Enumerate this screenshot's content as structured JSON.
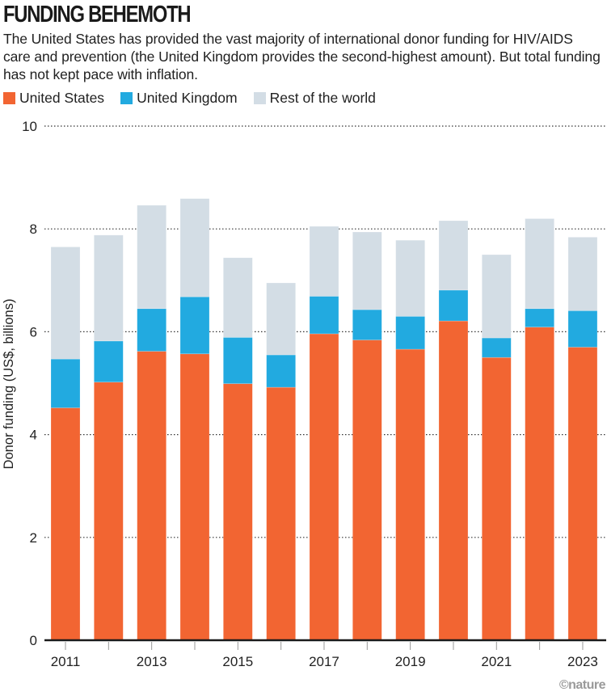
{
  "header": {
    "title": "FUNDING BEHEMOTH",
    "subtitle": "The United States has provided the vast majority of international donor funding for HIV/AIDS care and prevention (the United Kingdom provides the second-highest amount). But total funding has not kept pace with inflation."
  },
  "legend": [
    {
      "label": "United States",
      "color": "#F26532"
    },
    {
      "label": "United Kingdom",
      "color": "#22AAE0"
    },
    {
      "label": "Rest of the world",
      "color": "#D3DDE5"
    }
  ],
  "credit": "©nature",
  "chart_data": {
    "type": "bar",
    "stacked": true,
    "title": "FUNDING BEHEMOTH",
    "xlabel": "",
    "ylabel": "Donor funding (US$, billions)",
    "ylim": [
      0,
      10
    ],
    "yticks": [
      0,
      2,
      4,
      6,
      8,
      10
    ],
    "grid": true,
    "legend_position": "top-left",
    "categories": [
      "2011",
      "2012",
      "2013",
      "2014",
      "2015",
      "2016",
      "2017",
      "2018",
      "2019",
      "2020",
      "2021",
      "2022",
      "2023"
    ],
    "xtick_labels": [
      "2011",
      "",
      "2013",
      "",
      "2015",
      "",
      "2017",
      "",
      "2019",
      "",
      "2021",
      "",
      "2023"
    ],
    "series": [
      {
        "name": "United States",
        "color": "#F26532",
        "values": [
          4.52,
          5.02,
          5.62,
          5.57,
          4.99,
          4.92,
          5.96,
          5.84,
          5.66,
          6.21,
          5.5,
          6.09,
          5.7
        ]
      },
      {
        "name": "United Kingdom",
        "color": "#22AAE0",
        "values": [
          0.95,
          0.8,
          0.83,
          1.11,
          0.9,
          0.63,
          0.73,
          0.59,
          0.64,
          0.6,
          0.38,
          0.36,
          0.71
        ]
      },
      {
        "name": "Rest of the world",
        "color": "#D3DDE5",
        "values": [
          2.18,
          2.06,
          2.01,
          1.91,
          1.55,
          1.4,
          1.36,
          1.51,
          1.48,
          1.35,
          1.62,
          1.75,
          1.43
        ]
      }
    ],
    "totals": [
      7.65,
      7.88,
      8.46,
      8.59,
      7.44,
      6.95,
      8.05,
      7.94,
      7.78,
      8.16,
      7.5,
      8.2,
      7.84
    ]
  }
}
